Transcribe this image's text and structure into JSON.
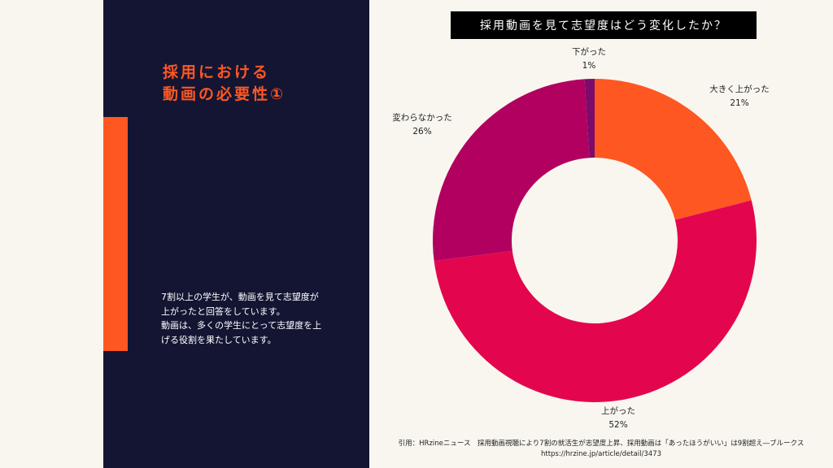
{
  "slide": {
    "heading_line1": "採用における",
    "heading_line2": "動画の必要性①",
    "body_line1": "7割以上の学生が、動画を見て志望度が",
    "body_line2": "上がったと回答をしています。",
    "body_line3": "動画は、多くの学生にとって志望度を上",
    "body_line4": "げる役割を果たしています。"
  },
  "citation": {
    "line1": "引用：HRzineニュース　採用動画視聴により7割の就活生が志望度上昇、採用動画は「あったほうがいい」は9割超え―ブルークス",
    "line2": "https://hrzine.jp/article/detail/3473"
  },
  "colors": {
    "accent": "#fe5722",
    "panel": "#131533"
  },
  "chart_data": {
    "type": "pie",
    "variant": "donut",
    "title": "採用動画を見て志望度はどう変化したか？",
    "slices": [
      {
        "label": "大きく上がった",
        "value": 21,
        "value_label": "21%",
        "color": "#fe5722"
      },
      {
        "label": "上がった",
        "value": 52,
        "value_label": "52%",
        "color": "#e3064e"
      },
      {
        "label": "変わらなかった",
        "value": 26,
        "value_label": "26%",
        "color": "#b10060"
      },
      {
        "label": "下がった",
        "value": 1,
        "value_label": "1%",
        "color": "#7c0b6b"
      }
    ]
  }
}
